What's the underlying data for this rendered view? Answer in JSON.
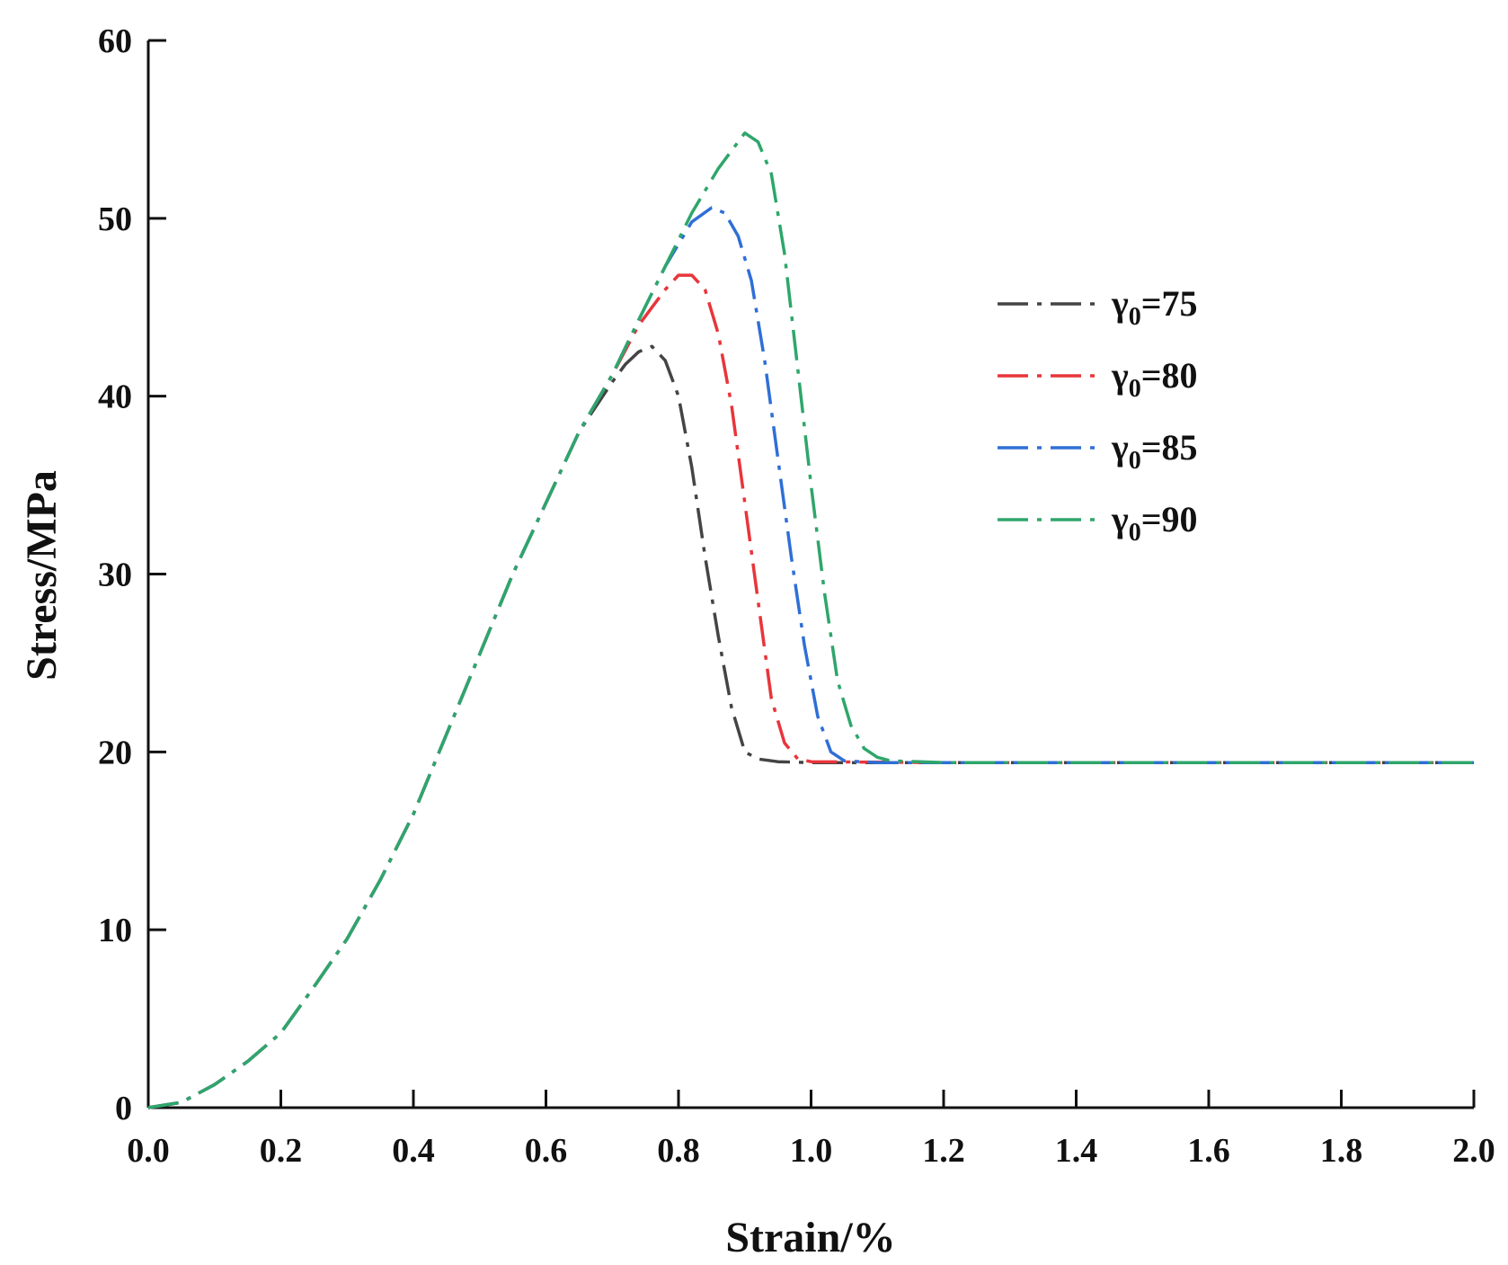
{
  "chart_data": {
    "type": "line",
    "xlabel": "Strain/%",
    "ylabel": "Stress/MPa",
    "xlim": [
      0.0,
      2.0
    ],
    "ylim": [
      0,
      60
    ],
    "x_ticks": [
      "0.0",
      "0.2",
      "0.4",
      "0.6",
      "0.8",
      "1.0",
      "1.2",
      "1.4",
      "1.6",
      "1.8",
      "2.0"
    ],
    "y_ticks": [
      "0",
      "10",
      "20",
      "30",
      "40",
      "50",
      "60"
    ],
    "grid": false,
    "legend_position": "upper-right",
    "line_style": "dash-dot",
    "series": [
      {
        "name": "γ0=75",
        "legend_symbol": "γ",
        "legend_subscript": "0",
        "legend_suffix": "=75",
        "color": "#444444",
        "x": [
          0.0,
          0.05,
          0.1,
          0.15,
          0.2,
          0.25,
          0.3,
          0.35,
          0.4,
          0.45,
          0.5,
          0.55,
          0.6,
          0.65,
          0.7,
          0.72,
          0.74,
          0.76,
          0.78,
          0.8,
          0.82,
          0.84,
          0.86,
          0.88,
          0.9,
          0.92,
          0.95,
          1.0,
          1.2,
          1.5,
          2.0
        ],
        "y": [
          0.0,
          0.3,
          1.3,
          2.6,
          4.2,
          6.8,
          9.5,
          12.8,
          16.5,
          21.0,
          25.5,
          30.0,
          34.0,
          38.0,
          40.8,
          41.8,
          42.5,
          42.8,
          42.0,
          40.0,
          36.0,
          31.0,
          26.5,
          22.5,
          20.0,
          19.6,
          19.45,
          19.4,
          19.4,
          19.4,
          19.4
        ]
      },
      {
        "name": "γ0=80",
        "legend_symbol": "γ",
        "legend_subscript": "0",
        "legend_suffix": "=80",
        "color": "#e8353b",
        "x": [
          0.0,
          0.05,
          0.1,
          0.15,
          0.2,
          0.25,
          0.3,
          0.35,
          0.4,
          0.45,
          0.5,
          0.55,
          0.6,
          0.65,
          0.7,
          0.74,
          0.78,
          0.8,
          0.82,
          0.84,
          0.86,
          0.88,
          0.9,
          0.92,
          0.94,
          0.96,
          0.98,
          1.0,
          1.2,
          1.5,
          2.0
        ],
        "y": [
          0.0,
          0.3,
          1.3,
          2.6,
          4.2,
          6.8,
          9.5,
          12.8,
          16.5,
          21.0,
          25.5,
          30.0,
          34.0,
          38.0,
          41.2,
          44.0,
          46.0,
          46.8,
          46.8,
          46.0,
          43.5,
          39.5,
          34.0,
          28.5,
          23.0,
          20.5,
          19.6,
          19.45,
          19.4,
          19.4,
          19.4
        ]
      },
      {
        "name": "γ0=85",
        "legend_symbol": "γ",
        "legend_subscript": "0",
        "legend_suffix": "=85",
        "color": "#2f6fd6",
        "x": [
          0.0,
          0.05,
          0.1,
          0.15,
          0.2,
          0.25,
          0.3,
          0.35,
          0.4,
          0.45,
          0.5,
          0.55,
          0.6,
          0.65,
          0.7,
          0.74,
          0.78,
          0.82,
          0.85,
          0.87,
          0.89,
          0.91,
          0.93,
          0.95,
          0.97,
          0.99,
          1.01,
          1.03,
          1.05,
          1.1,
          1.2,
          1.5,
          2.0
        ],
        "y": [
          0.0,
          0.3,
          1.3,
          2.6,
          4.2,
          6.8,
          9.5,
          12.8,
          16.5,
          21.0,
          25.5,
          30.0,
          34.0,
          38.0,
          41.2,
          44.3,
          47.3,
          49.8,
          50.6,
          50.3,
          49.0,
          46.5,
          42.0,
          36.5,
          31.0,
          26.0,
          22.0,
          20.0,
          19.5,
          19.4,
          19.4,
          19.4,
          19.4
        ]
      },
      {
        "name": "γ0=90",
        "legend_symbol": "γ",
        "legend_subscript": "0",
        "legend_suffix": "=90",
        "color": "#2ea66a",
        "x": [
          0.0,
          0.05,
          0.1,
          0.15,
          0.2,
          0.25,
          0.3,
          0.35,
          0.4,
          0.45,
          0.5,
          0.55,
          0.6,
          0.65,
          0.7,
          0.74,
          0.78,
          0.82,
          0.86,
          0.9,
          0.92,
          0.94,
          0.96,
          0.98,
          1.0,
          1.02,
          1.04,
          1.06,
          1.08,
          1.1,
          1.12,
          1.2,
          1.5,
          2.0
        ],
        "y": [
          0.0,
          0.3,
          1.3,
          2.6,
          4.2,
          6.8,
          9.5,
          12.8,
          16.5,
          21.0,
          25.5,
          30.0,
          34.0,
          38.0,
          41.2,
          44.3,
          47.3,
          50.3,
          52.8,
          54.8,
          54.3,
          52.5,
          48.0,
          41.5,
          35.0,
          29.0,
          24.0,
          21.5,
          20.2,
          19.7,
          19.5,
          19.4,
          19.4,
          19.4
        ]
      }
    ]
  }
}
